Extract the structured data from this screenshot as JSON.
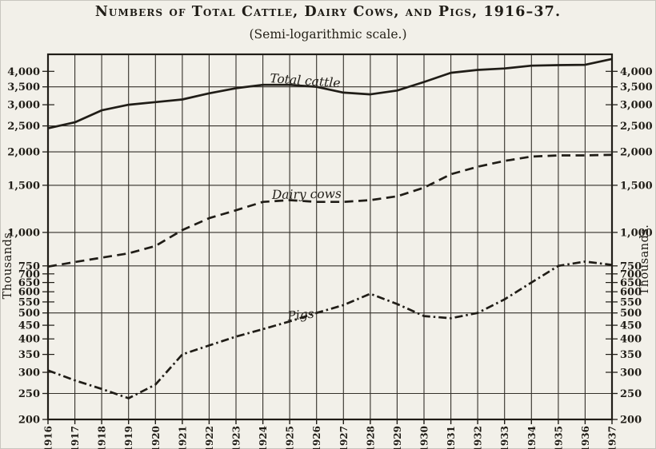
{
  "colors": {
    "ink": "#201d17",
    "grid": "#34302a",
    "paper": "#f2f0e9"
  },
  "chart_data": {
    "type": "line",
    "scale": "semi-logarithmic",
    "title": "Numbers of Total Cattle, Dairy Cows, and Pigs, 1916–37.",
    "subtitle": "(Semi-logarithmic scale.)",
    "grid": true,
    "legend": "inline-labels",
    "x": [
      1916,
      1917,
      1918,
      1919,
      1920,
      1921,
      1922,
      1923,
      1924,
      1925,
      1926,
      1927,
      1928,
      1929,
      1930,
      1931,
      1932,
      1933,
      1934,
      1935,
      1936,
      1937
    ],
    "x_axis": {
      "tick_labels": [
        "1916",
        "1917",
        "1918",
        "1919",
        "1920",
        "1921",
        "1922",
        "1923",
        "1924",
        "1925",
        "1926",
        "1927",
        "1928",
        "1929",
        "1930",
        "1931",
        "1932",
        "1933",
        "1934",
        "1935",
        "1936",
        "1937"
      ]
    },
    "y_axis": {
      "title_left": "Thousands.",
      "title_right": "Thousands.",
      "unit": "thousands",
      "ylim": [
        200,
        4630
      ],
      "ticks": [
        {
          "label": "4,000",
          "value": 4000,
          "gridline": false
        },
        {
          "label": "3,500",
          "value": 3500,
          "gridline": true
        },
        {
          "label": "3,000",
          "value": 3000,
          "gridline": false
        },
        {
          "label": "2,500",
          "value": 2500,
          "gridline": true
        },
        {
          "label": "2,000",
          "value": 2000,
          "gridline": true
        },
        {
          "label": "1,500",
          "value": 1500,
          "gridline": true
        },
        {
          "label": "1,000",
          "value": 1000,
          "gridline": true
        },
        {
          "label": "750",
          "value": 750,
          "gridline": true
        },
        {
          "label": "700",
          "value": 700,
          "gridline": false
        },
        {
          "label": "650",
          "value": 650,
          "gridline": false
        },
        {
          "label": "600",
          "value": 600,
          "gridline": false
        },
        {
          "label": "550",
          "value": 550,
          "gridline": false
        },
        {
          "label": "500",
          "value": 500,
          "gridline": true
        },
        {
          "label": "450",
          "value": 450,
          "gridline": false
        },
        {
          "label": "400",
          "value": 400,
          "gridline": false
        },
        {
          "label": "350",
          "value": 350,
          "gridline": false
        },
        {
          "label": "300",
          "value": 300,
          "gridline": false
        },
        {
          "label": "250",
          "value": 250,
          "gridline": true
        },
        {
          "label": "200",
          "value": 200,
          "gridline": false
        }
      ]
    },
    "series": [
      {
        "name": "Total cattle",
        "line_style": "solid",
        "values": [
          2450,
          2580,
          2860,
          3000,
          3070,
          3140,
          3310,
          3460,
          3560,
          3560,
          3500,
          3330,
          3280,
          3390,
          3650,
          3950,
          4050,
          4100,
          4200,
          4220,
          4230,
          4450
        ]
      },
      {
        "name": "Dairy cows",
        "line_style": "dashed",
        "values": [
          745,
          775,
          805,
          835,
          890,
          1020,
          1130,
          1210,
          1300,
          1320,
          1300,
          1300,
          1320,
          1365,
          1470,
          1650,
          1760,
          1850,
          1920,
          1940,
          1940,
          1950
        ]
      },
      {
        "name": "Pigs",
        "line_style": "dash-dot",
        "values": [
          305,
          280,
          260,
          240,
          270,
          350,
          378,
          408,
          435,
          465,
          500,
          535,
          590,
          540,
          487,
          478,
          500,
          562,
          650,
          750,
          778,
          756
        ]
      }
    ]
  }
}
